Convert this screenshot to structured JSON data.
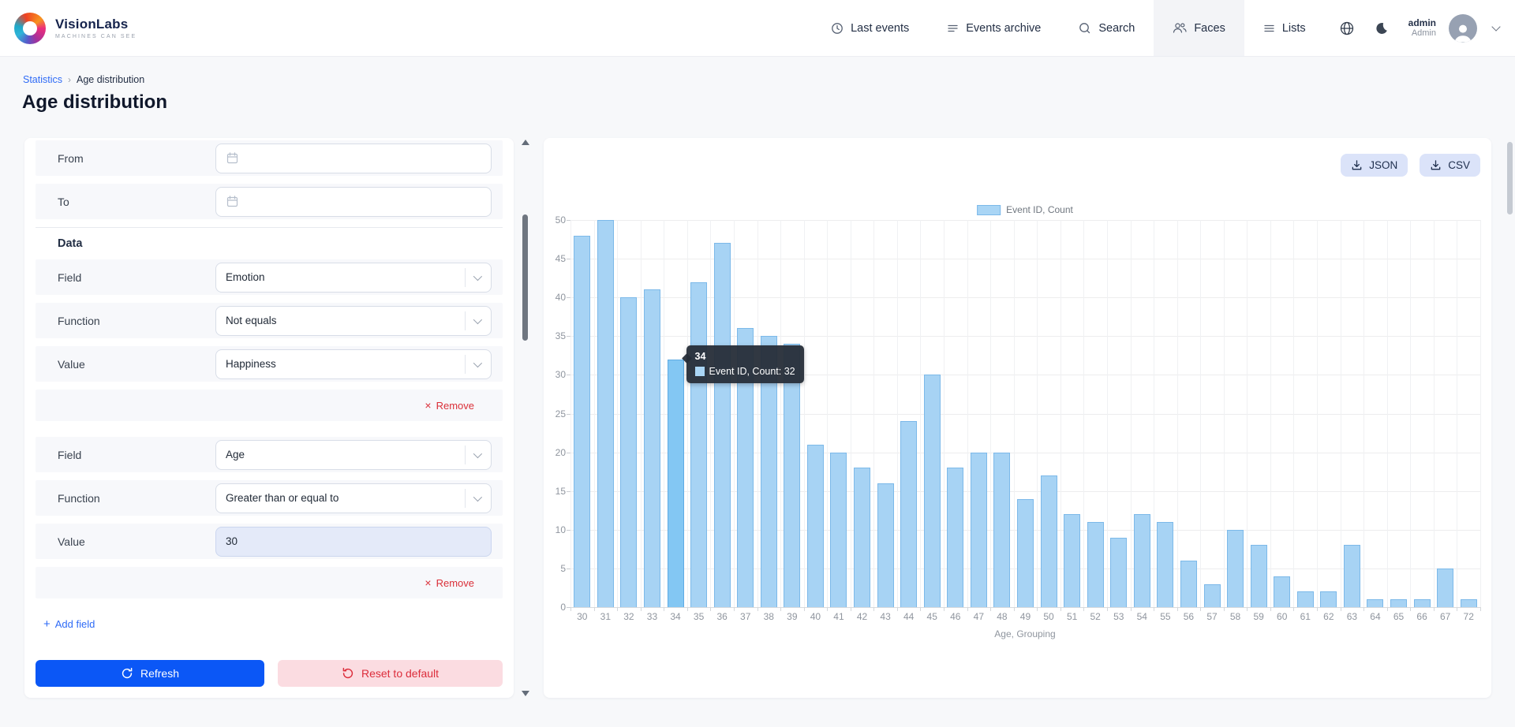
{
  "header": {
    "brand": {
      "name": "VisionLabs",
      "tagline": "MACHINES CAN SEE"
    },
    "nav": [
      {
        "id": "last-events",
        "label": "Last events",
        "icon": "clock-icon",
        "active": false
      },
      {
        "id": "events-archive",
        "label": "Events archive",
        "icon": "archive-icon",
        "active": false
      },
      {
        "id": "search",
        "label": "Search",
        "icon": "search-icon",
        "active": false
      },
      {
        "id": "faces",
        "label": "Faces",
        "icon": "faces-icon",
        "active": true
      },
      {
        "id": "lists",
        "label": "Lists",
        "icon": "lists-icon",
        "active": false
      }
    ],
    "user": {
      "name": "admin",
      "role": "Admin"
    }
  },
  "breadcrumb": {
    "items": [
      "Statistics",
      "Age distribution"
    ]
  },
  "page_title": "Age distribution",
  "filters": {
    "date_rows": [
      {
        "label": "From",
        "value": ""
      },
      {
        "label": "To",
        "value": ""
      }
    ],
    "section_title": "Data",
    "groups": [
      {
        "rows": [
          {
            "label": "Field",
            "value": "Emotion",
            "type": "select"
          },
          {
            "label": "Function",
            "value": "Not equals",
            "type": "select"
          },
          {
            "label": "Value",
            "value": "Happiness",
            "type": "select"
          }
        ],
        "remove_label": "Remove"
      },
      {
        "rows": [
          {
            "label": "Field",
            "value": "Age",
            "type": "select"
          },
          {
            "label": "Function",
            "value": "Greater than or equal to",
            "type": "select"
          },
          {
            "label": "Value",
            "value": "30",
            "type": "input",
            "highlighted": true
          }
        ],
        "remove_label": "Remove"
      }
    ],
    "add_field_label": "Add field",
    "refresh_label": "Refresh",
    "reset_label": "Reset to default"
  },
  "chart_panel": {
    "export_buttons": [
      {
        "label": "JSON"
      },
      {
        "label": "CSV"
      }
    ]
  },
  "chart_data": {
    "type": "bar",
    "legend": "Event ID, Count",
    "xlabel": "Age, Grouping",
    "ylabel": "",
    "ylim": [
      0,
      50
    ],
    "ytick_step": 5,
    "grid": true,
    "categories": [
      30,
      31,
      32,
      33,
      34,
      35,
      36,
      37,
      38,
      39,
      40,
      41,
      42,
      43,
      44,
      45,
      46,
      47,
      48,
      49,
      50,
      51,
      52,
      53,
      54,
      55,
      56,
      57,
      58,
      59,
      60,
      61,
      62,
      63,
      64,
      65,
      66,
      67,
      72
    ],
    "values": [
      48,
      50,
      40,
      41,
      32,
      42,
      47,
      36,
      35,
      34,
      21,
      20,
      18,
      16,
      24,
      30,
      18,
      20,
      20,
      14,
      17,
      12,
      11,
      9,
      12,
      11,
      6,
      3,
      10,
      8,
      4,
      2,
      2,
      8,
      1,
      1,
      1,
      5,
      1
    ],
    "tooltip": {
      "category": 34,
      "series_label": "Event ID, Count",
      "value": 32
    }
  },
  "colors": {
    "accent_blue": "#0b57f6",
    "link_blue": "#2f6bf6",
    "danger_red": "#dc2d3b",
    "bar_fill": "#a7d3f4",
    "bar_border": "#7cb9e9",
    "bar_hover": "#83c7f3",
    "tooltip_bg": "#262d38"
  }
}
